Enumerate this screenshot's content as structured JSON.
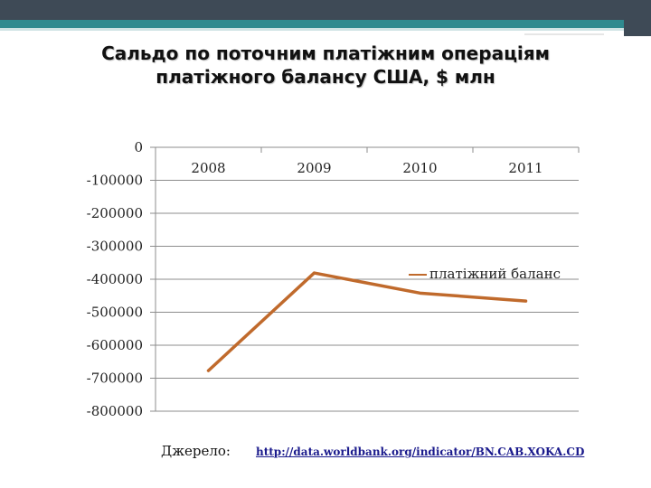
{
  "slide": {
    "title_line1": "Сальдо по поточним платіжним операціям",
    "title_line2": "платіжного балансу США, $ млн",
    "source_label": "Джерело:",
    "source_url": "http://data.worldbank.org/indicator/BN.CAB.XOKA.CD"
  },
  "colors": {
    "top_bar_dark": "#3e4a56",
    "top_bar_accent": "#2f8a8f",
    "line": "#c06a2c",
    "grid": "#8c8c8c"
  },
  "chart_data": {
    "type": "line",
    "title": "",
    "xlabel": "",
    "ylabel": "",
    "categories": [
      "2008",
      "2009",
      "2010",
      "2011"
    ],
    "y_ticks": [
      "0",
      "-100000",
      "-200000",
      "-300000",
      "-400000",
      "-500000",
      "-600000",
      "-700000",
      "-800000"
    ],
    "ylim": [
      -800000,
      0
    ],
    "grid": true,
    "legend_position": "right",
    "series": [
      {
        "name": "платіжний баланс",
        "values": [
          -677000,
          -381000,
          -442000,
          -466000
        ]
      }
    ]
  }
}
